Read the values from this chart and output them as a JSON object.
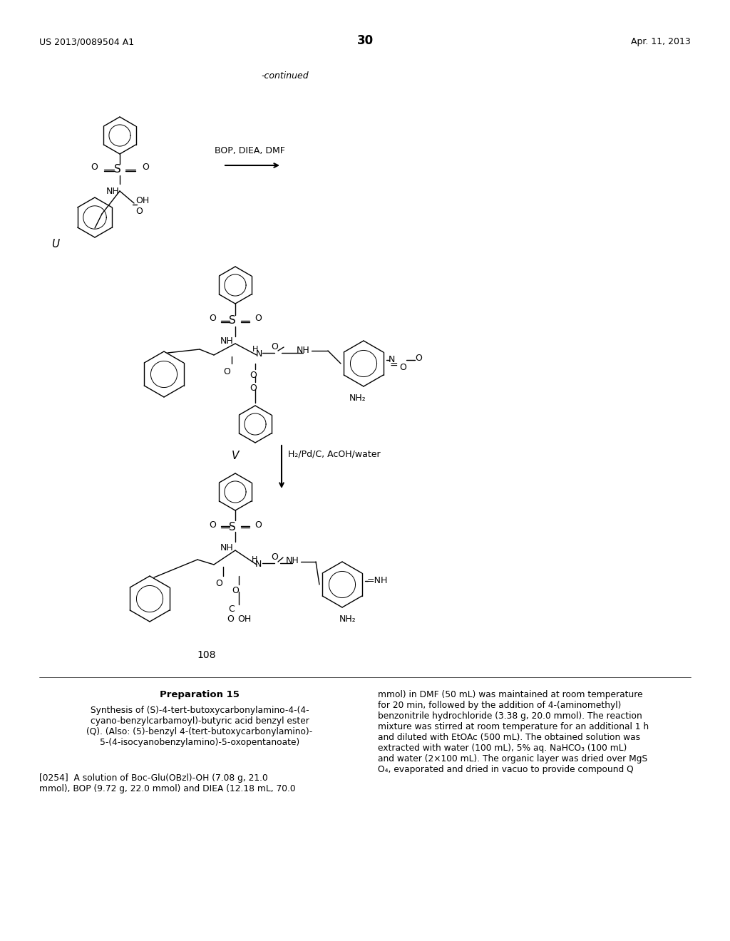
{
  "page_header_left": "US 2013/0089504 A1",
  "page_header_right": "Apr. 11, 2013",
  "page_number": "30",
  "continued_text": "-continued",
  "reagent_label_1": "BOP, DIEA, DMF",
  "reagent_label_2": "H₂/Pd/C, AcOH/water",
  "compound_U": "U",
  "compound_V": "V",
  "compound_108": "108",
  "preparation_title": "Preparation 15",
  "preparation_subtitle": "Synthesis of (S)-4-tert-butoxycarbonylamino-4-(4-\ncyano-benzylcarbamoyl)-butyric acid benzyl ester\n(Q). (Also: (5)-benzyl 4-(tert-butoxycarbonylamino)-\n5-(4-isocyanobenzylamino)-5-oxopentanoate)",
  "paragraph_254": "[0254]  A solution of Boc-Glu(OBzl)-OH (7.08 g, 21.0\nmmol), BOP (9.72 g, 22.0 mmol) and DIEA (12.18 mL, 70.0",
  "right_col_text": "mmol) in DMF (50 mL) was maintained at room temperature\nfor 20 min, followed by the addition of 4-(aminomethyl)\nbenzonitrile hydrochloride (3.38 g, 20.0 mmol). The reaction\nmixture was stirred at room temperature for an additional 1 h\nand diluted with EtOAc (500 mL). The obtained solution was\nextracted with water (100 mL), 5% aq. NaHCO₃ (100 mL)\nand water (2×100 mL). The organic layer was dried over MgS\nO₄, evaporated and dried in vacuo to provide compound Q",
  "bg_color": "#ffffff",
  "text_color": "#000000",
  "font_size_header": 9,
  "font_size_body": 8.5,
  "font_size_page_num": 11
}
